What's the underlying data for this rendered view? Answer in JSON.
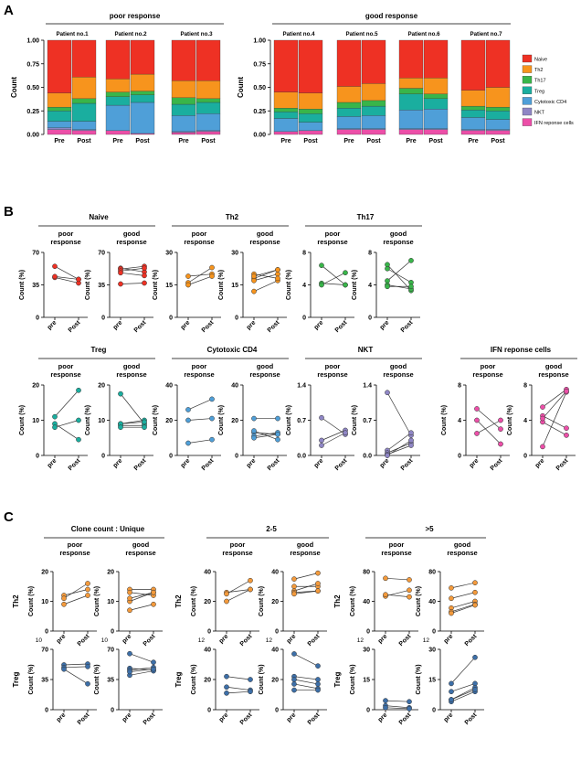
{
  "panels": {
    "A": "A",
    "B": "B",
    "C": "C"
  },
  "colors": {
    "Naive": "#ee3124",
    "Th2": "#f7941d",
    "Th17": "#39b54a",
    "Treg": "#1aae9f",
    "Cytotoxic CD4": "#4f9fd8",
    "NKT": "#8f86c5",
    "IFN reponse cells": "#ec4fa8",
    "Th2_dot": "#f39a3c",
    "Treg_dot": "#3d6fa8"
  },
  "chart_data": [
    {
      "id": "A",
      "type": "bar",
      "stacked": true,
      "ylabel": "Count",
      "ylim": [
        0,
        1
      ],
      "yticks": [
        "0.00",
        "0.25",
        "0.50",
        "0.75",
        "1.00"
      ],
      "groups": [
        {
          "label": "poor response",
          "patients": [
            "Patient no.1",
            "Patient no.2",
            "Patient no.3"
          ]
        },
        {
          "label": "good response",
          "patients": [
            "Patient no.4",
            "Patient no.5",
            "Patient no.6",
            "Patient no.7"
          ]
        }
      ],
      "categories": [
        "Pre",
        "Post"
      ],
      "legend": [
        "Naive",
        "Th2",
        "Th17",
        "Treg",
        "Cytotoxic CD4",
        "NKT",
        "IFN reponse cells"
      ],
      "stack_order_bottom_up": [
        "IFN reponse cells",
        "NKT",
        "Cytotoxic CD4",
        "Treg",
        "Th17",
        "Th2",
        "Naive"
      ],
      "bars": [
        {
          "patient": "Patient no.1",
          "time": "Pre",
          "values": {
            "IFN reponse cells": 0.05,
            "NKT": 0.02,
            "Cytotoxic CD4": 0.07,
            "Treg": 0.11,
            "Th17": 0.04,
            "Th2": 0.15,
            "Naive": 0.56
          }
        },
        {
          "patient": "Patient no.1",
          "time": "Post",
          "values": {
            "IFN reponse cells": 0.04,
            "NKT": 0.01,
            "Cytotoxic CD4": 0.09,
            "Treg": 0.19,
            "Th17": 0.05,
            "Th2": 0.23,
            "Naive": 0.39
          }
        },
        {
          "patient": "Patient no.2",
          "time": "Pre",
          "values": {
            "IFN reponse cells": 0.04,
            "NKT": 0.0,
            "Cytotoxic CD4": 0.27,
            "Treg": 0.09,
            "Th17": 0.05,
            "Th2": 0.14,
            "Naive": 0.41
          }
        },
        {
          "patient": "Patient no.2",
          "time": "Post",
          "values": {
            "IFN reponse cells": 0.01,
            "NKT": 0.0,
            "Cytotoxic CD4": 0.33,
            "Treg": 0.08,
            "Th17": 0.04,
            "Th2": 0.18,
            "Naive": 0.36
          }
        },
        {
          "patient": "Patient no.3",
          "time": "Pre",
          "values": {
            "IFN reponse cells": 0.02,
            "NKT": 0.01,
            "Cytotoxic CD4": 0.17,
            "Treg": 0.12,
            "Th17": 0.07,
            "Th2": 0.18,
            "Naive": 0.43
          }
        },
        {
          "patient": "Patient no.3",
          "time": "Post",
          "values": {
            "IFN reponse cells": 0.03,
            "NKT": 0.01,
            "Cytotoxic CD4": 0.18,
            "Treg": 0.12,
            "Th17": 0.04,
            "Th2": 0.19,
            "Naive": 0.43
          }
        },
        {
          "patient": "Patient no.4",
          "time": "Pre",
          "values": {
            "IFN reponse cells": 0.03,
            "NKT": 0.0,
            "Cytotoxic CD4": 0.14,
            "Treg": 0.07,
            "Th17": 0.04,
            "Th2": 0.17,
            "Naive": 0.55
          }
        },
        {
          "patient": "Patient no.4",
          "time": "Post",
          "values": {
            "IFN reponse cells": 0.04,
            "NKT": 0.0,
            "Cytotoxic CD4": 0.09,
            "Treg": 0.09,
            "Th17": 0.05,
            "Th2": 0.17,
            "Naive": 0.56
          }
        },
        {
          "patient": "Patient no.5",
          "time": "Pre",
          "values": {
            "IFN reponse cells": 0.05,
            "NKT": 0.01,
            "Cytotoxic CD4": 0.13,
            "Treg": 0.09,
            "Th17": 0.06,
            "Th2": 0.17,
            "Naive": 0.49
          }
        },
        {
          "patient": "Patient no.5",
          "time": "Post",
          "values": {
            "IFN reponse cells": 0.05,
            "NKT": 0.01,
            "Cytotoxic CD4": 0.14,
            "Treg": 0.1,
            "Th17": 0.06,
            "Th2": 0.18,
            "Naive": 0.46
          }
        },
        {
          "patient": "Patient no.6",
          "time": "Pre",
          "values": {
            "IFN reponse cells": 0.05,
            "NKT": 0.01,
            "Cytotoxic CD4": 0.2,
            "Treg": 0.17,
            "Th17": 0.06,
            "Th2": 0.11,
            "Naive": 0.4
          }
        },
        {
          "patient": "Patient no.6",
          "time": "Post",
          "values": {
            "IFN reponse cells": 0.05,
            "NKT": 0.01,
            "Cytotoxic CD4": 0.21,
            "Treg": 0.11,
            "Th17": 0.05,
            "Th2": 0.17,
            "Naive": 0.4
          }
        },
        {
          "patient": "Patient no.7",
          "time": "Pre",
          "values": {
            "IFN reponse cells": 0.04,
            "NKT": 0.01,
            "Cytotoxic CD4": 0.13,
            "Treg": 0.08,
            "Th17": 0.04,
            "Th2": 0.17,
            "Naive": 0.53
          }
        },
        {
          "patient": "Patient no.7",
          "time": "Post",
          "values": {
            "IFN reponse cells": 0.04,
            "NKT": 0.01,
            "Cytotoxic CD4": 0.11,
            "Treg": 0.09,
            "Th17": 0.04,
            "Th2": 0.21,
            "Naive": 0.5
          }
        }
      ]
    },
    {
      "id": "B",
      "type": "scatter",
      "style": "paired-lines",
      "ylabel": "Count (%)",
      "xticks": [
        "pre",
        "Post"
      ],
      "panels": [
        {
          "title": "Naive",
          "color": "#ee3124",
          "ylim": [
            0,
            70
          ],
          "yticks": [
            "0",
            "35",
            "70"
          ],
          "poor": [
            [
              55,
              41
            ],
            [
              43,
              37
            ],
            [
              44,
              41
            ]
          ],
          "good": [
            [
              53,
              49
            ],
            [
              52,
              55
            ],
            [
              36,
              37
            ],
            [
              50,
              53
            ],
            [
              48,
              45
            ]
          ]
        },
        {
          "title": "Th2",
          "color": "#f7941d",
          "ylim": [
            0,
            30
          ],
          "yticks": [
            "0",
            "15",
            "30"
          ],
          "poor": [
            [
              19,
              20
            ],
            [
              16,
              23
            ],
            [
              15,
              19
            ]
          ],
          "good": [
            [
              18,
              22
            ],
            [
              12,
              17
            ],
            [
              17,
              20
            ],
            [
              20,
              18
            ],
            [
              19,
              22
            ]
          ]
        },
        {
          "title": "Th17",
          "color": "#39b54a",
          "ylim": [
            0,
            8
          ],
          "yticks": [
            "0",
            "4",
            "8"
          ],
          "poor": [
            [
              6.4,
              4.0
            ],
            [
              4.2,
              4.0
            ],
            [
              4.0,
              5.5
            ]
          ],
          "good": [
            [
              6.5,
              3.3
            ],
            [
              6.0,
              4.3
            ],
            [
              4.5,
              7.0
            ],
            [
              4.0,
              3.5
            ],
            [
              3.8,
              3.8
            ]
          ]
        },
        {
          "title": "Treg",
          "color": "#1aae9f",
          "ylim": [
            0,
            20
          ],
          "yticks": [
            "0",
            "10",
            "20"
          ],
          "poor": [
            [
              11,
              18.5
            ],
            [
              9,
              4.5
            ],
            [
              8,
              10
            ]
          ],
          "good": [
            [
              17.5,
              9
            ],
            [
              9,
              10
            ],
            [
              8.5,
              8.5
            ],
            [
              9,
              9.5
            ],
            [
              8,
              8
            ]
          ]
        },
        {
          "title": "Cytotoxic CD4",
          "color": "#4f9fd8",
          "ylim": [
            0,
            40
          ],
          "yticks": [
            "0",
            "20",
            "40"
          ],
          "poor": [
            [
              26,
              32
            ],
            [
              20,
              21
            ],
            [
              7,
              9
            ]
          ],
          "good": [
            [
              21,
              21
            ],
            [
              13,
              12
            ],
            [
              11,
              13
            ],
            [
              14,
              9
            ],
            [
              10,
              12
            ]
          ]
        },
        {
          "title": "NKT",
          "color": "#8f86c5",
          "ylim": [
            0,
            1.4
          ],
          "yticks": [
            "0.0",
            "0.7",
            "1.4"
          ],
          "poor": [
            [
              0.75,
              0.42
            ],
            [
              0.3,
              0.5
            ],
            [
              0.2,
              0.45
            ]
          ],
          "good": [
            [
              1.25,
              0.4
            ],
            [
              0.1,
              0.45
            ],
            [
              0.05,
              0.25
            ],
            [
              0.02,
              0.2
            ],
            [
              0.0,
              0.3
            ]
          ]
        },
        {
          "title": "IFN reponse cells",
          "color": "#ec4fa8",
          "ylim": [
            0,
            8
          ],
          "yticks": [
            "0",
            "4",
            "8"
          ],
          "poor": [
            [
              5.3,
              3.0
            ],
            [
              4.0,
              1.3
            ],
            [
              2.5,
              4.0
            ]
          ],
          "good": [
            [
              5.5,
              7.5
            ],
            [
              4.5,
              3.1
            ],
            [
              3.8,
              2.3
            ],
            [
              1.0,
              7.2
            ],
            [
              4.2,
              7.3
            ]
          ]
        }
      ],
      "group_labels": {
        "poor": [
          "poor",
          "response"
        ],
        "good": [
          "good",
          "response"
        ]
      }
    },
    {
      "id": "C",
      "type": "scatter",
      "style": "paired-lines",
      "ylabel": "Count (%)",
      "xticks": [
        "pre",
        "Post"
      ],
      "sections": [
        {
          "title": "Clone count : Unique",
          "th2": {
            "ylim": [
              0,
              20
            ],
            "yticks": [
              "0",
              "10",
              "20"
            ],
            "below_label": "10",
            "poor": [
              [
                12,
                14
              ],
              [
                11,
                16
              ],
              [
                9,
                12
              ]
            ],
            "good": [
              [
                14,
                14
              ],
              [
                13,
                12
              ],
              [
                10,
                13
              ],
              [
                7,
                9
              ],
              [
                11,
                13
              ]
            ]
          },
          "treg": {
            "ylim": [
              0,
              70
            ],
            "yticks": [
              "0",
              "35",
              "70"
            ],
            "poor": [
              [
                52,
                53
              ],
              [
                49,
                50
              ],
              [
                47,
                30
              ]
            ],
            "good": [
              [
                65,
                55
              ],
              [
                48,
                46
              ],
              [
                46,
                49
              ],
              [
                40,
                45
              ],
              [
                44,
                47
              ]
            ]
          }
        },
        {
          "title": "2-5",
          "th2": {
            "ylim": [
              0,
              40
            ],
            "yticks": [
              "0",
              "20",
              "40"
            ],
            "below_label": "12",
            "poor": [
              [
                26,
                28
              ],
              [
                25,
                34
              ],
              [
                20,
                28
              ]
            ],
            "good": [
              [
                35,
                39
              ],
              [
                30,
                30
              ],
              [
                27,
                32
              ],
              [
                26,
                27
              ],
              [
                25,
                27
              ]
            ]
          },
          "treg": {
            "ylim": [
              0,
              40
            ],
            "yticks": [
              "0",
              "20",
              "40"
            ],
            "poor": [
              [
                22,
                20
              ],
              [
                15,
                13
              ],
              [
                11,
                12
              ]
            ],
            "good": [
              [
                37,
                29
              ],
              [
                22,
                20
              ],
              [
                20,
                17
              ],
              [
                17,
                14
              ],
              [
                13,
                13
              ]
            ]
          }
        },
        {
          "title": ">5",
          "th2": {
            "ylim": [
              0,
              80
            ],
            "yticks": [
              "0",
              "40",
              "80"
            ],
            "below_label": "12",
            "poor": [
              [
                71,
                69
              ],
              [
                47,
                55
              ],
              [
                49,
                46
              ]
            ],
            "good": [
              [
                58,
                65
              ],
              [
                44,
                52
              ],
              [
                31,
                40
              ],
              [
                26,
                36
              ],
              [
                24,
                35
              ]
            ]
          },
          "treg": {
            "ylim": [
              0,
              30
            ],
            "yticks": [
              "0",
              "15",
              "30"
            ],
            "poor": [
              [
                4.5,
                4.0
              ],
              [
                2.0,
                1.0
              ],
              [
                1.0,
                0.5
              ]
            ],
            "good": [
              [
                13,
                26
              ],
              [
                9,
                13
              ],
              [
                5,
                11
              ],
              [
                4,
                9
              ],
              [
                5,
                10
              ]
            ]
          }
        }
      ],
      "row_labels": [
        "Th2",
        "Treg"
      ]
    }
  ]
}
